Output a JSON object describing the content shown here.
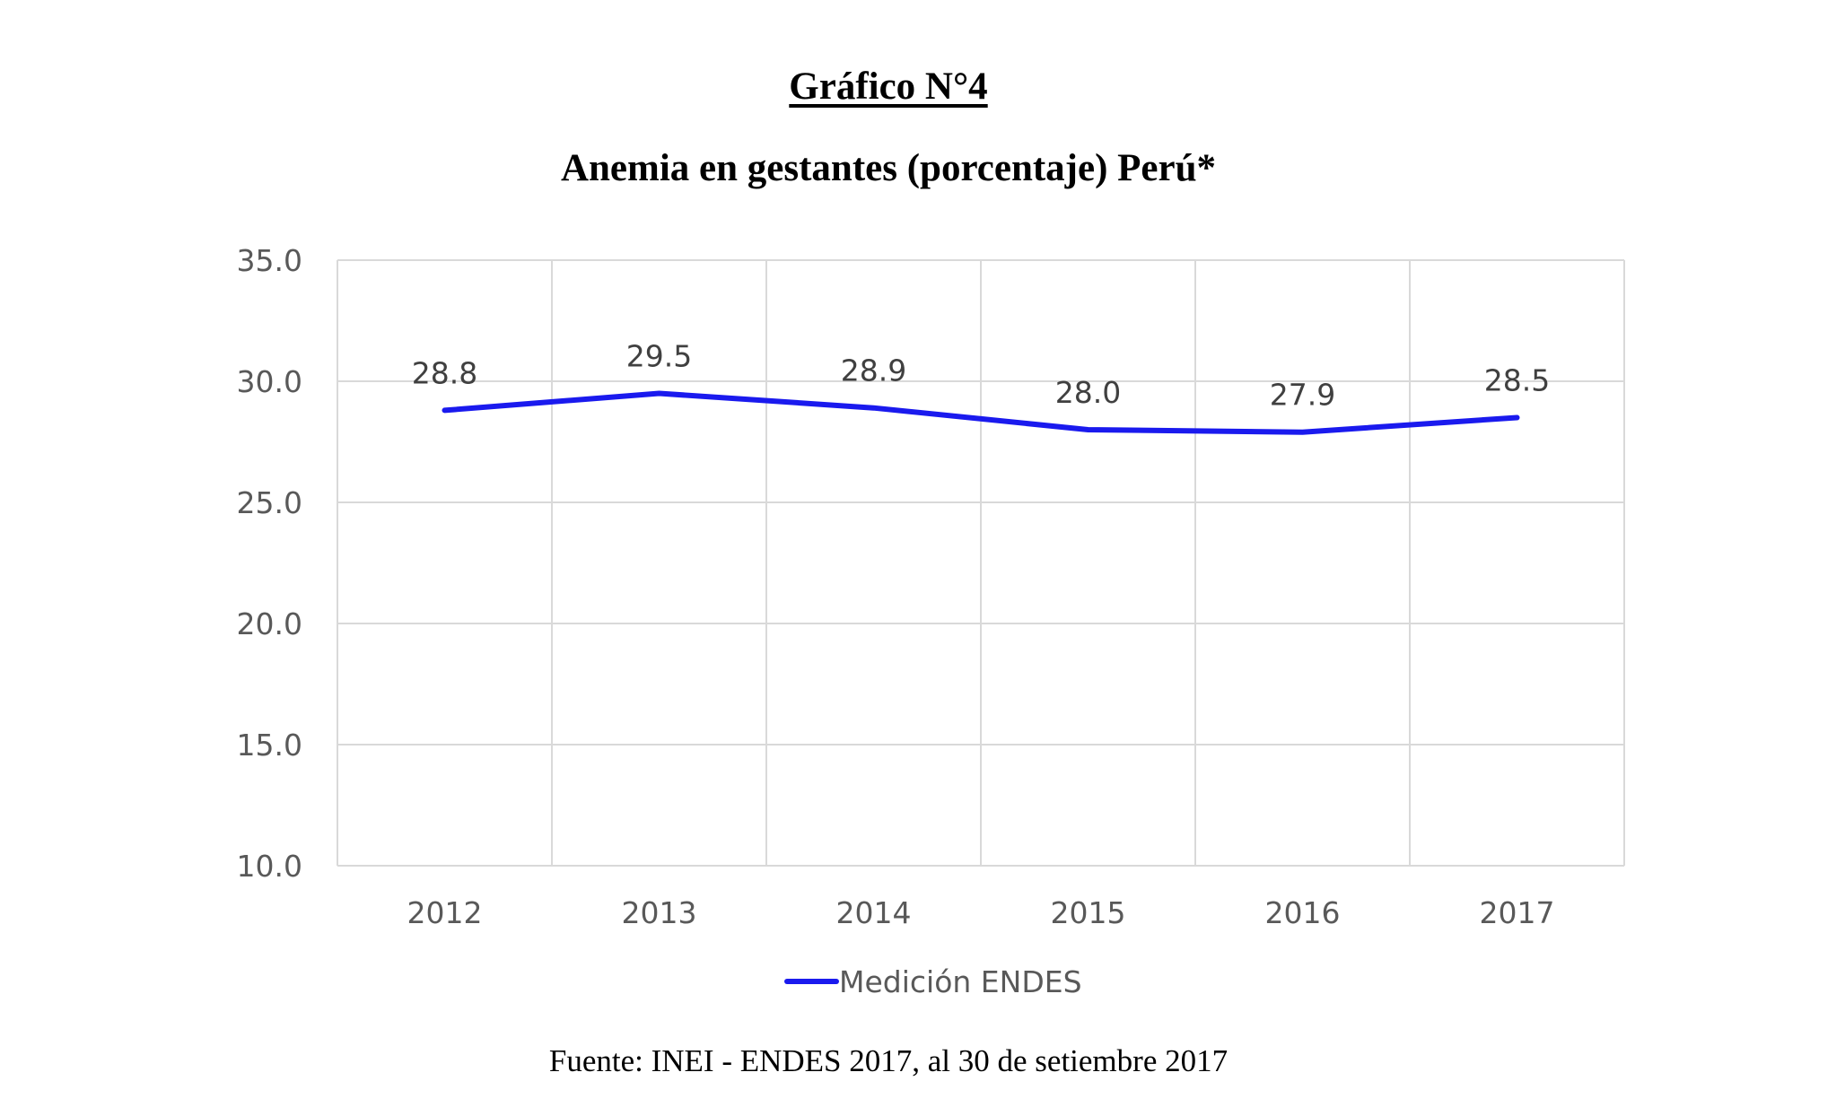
{
  "header": {
    "figure_label": "Gráfico N°4",
    "title": "Anemia en gestantes (porcentaje) Perú*"
  },
  "footer": {
    "source": "Fuente: INEI - ENDES 2017, al 30 de setiembre 2017"
  },
  "chart_data": {
    "type": "line",
    "title": "Anemia en gestantes (porcentaje) Perú*",
    "xlabel": "",
    "ylabel": "",
    "categories": [
      "2012",
      "2013",
      "2014",
      "2015",
      "2016",
      "2017"
    ],
    "series": [
      {
        "name": "Medición ENDES",
        "values": [
          28.8,
          29.5,
          28.9,
          28.0,
          27.9,
          28.5
        ],
        "labels": [
          "28.8",
          "29.5",
          "28.9",
          "28.0",
          "27.9",
          "28.5"
        ],
        "color": "#1a1aee"
      }
    ],
    "ylim": [
      10,
      35
    ],
    "yticks": [
      "10.0",
      "15.0",
      "20.0",
      "25.0",
      "30.0",
      "35.0"
    ],
    "grid": true,
    "gridColor": "#d9d9d9",
    "legend": "bottom"
  }
}
